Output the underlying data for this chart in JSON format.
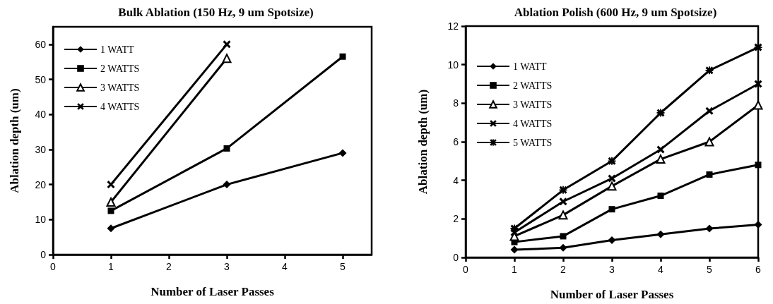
{
  "chart_data": [
    {
      "type": "line",
      "title": "Bulk Ablation (150 Hz, 9 um Spotsize)",
      "xlabel": "Number of Laser Passes",
      "ylabel": "Ablation depth (um)",
      "xlim": [
        0,
        5.5
      ],
      "xticks": [
        0,
        1,
        2,
        3,
        4,
        5
      ],
      "ylim": [
        0,
        65
      ],
      "yticks": [
        0,
        10,
        20,
        30,
        40,
        50,
        60
      ],
      "grid": false,
      "legend": "top left",
      "series": [
        {
          "name": "1 WATT",
          "color": "#000000",
          "marker": "diamond",
          "x": [
            1,
            3,
            5
          ],
          "values": [
            7.5,
            20,
            29
          ]
        },
        {
          "name": "2 WATTS",
          "color": "#000000",
          "marker": "square",
          "x": [
            1,
            3,
            5
          ],
          "values": [
            12.5,
            30.3,
            56.5
          ]
        },
        {
          "name": "3 WATTS",
          "color": "#000000",
          "marker": "triangle",
          "x": [
            1,
            3
          ],
          "values": [
            15,
            56
          ]
        },
        {
          "name": "4 WATTS",
          "color": "#000000",
          "marker": "cross",
          "x": [
            1,
            3
          ],
          "values": [
            20,
            60
          ]
        }
      ]
    },
    {
      "type": "line",
      "title": "Ablation Polish (600 Hz, 9 um Spotsize)",
      "xlabel": "Number of Laser Passes",
      "ylabel": "Ablation depth (um)",
      "xlim": [
        0,
        6
      ],
      "xticks": [
        0,
        1,
        2,
        3,
        4,
        5,
        6
      ],
      "ylim": [
        0,
        12
      ],
      "yticks": [
        0,
        2,
        4,
        6,
        8,
        10,
        12
      ],
      "grid": false,
      "legend": "top left",
      "series": [
        {
          "name": "1 WATT",
          "color": "#000000",
          "marker": "diamond",
          "x": [
            1,
            2,
            3,
            4,
            5,
            6
          ],
          "values": [
            0.4,
            0.5,
            0.9,
            1.2,
            1.5,
            1.7
          ]
        },
        {
          "name": "2 WATTS",
          "color": "#000000",
          "marker": "square",
          "x": [
            1,
            2,
            3,
            4,
            5,
            6
          ],
          "values": [
            0.8,
            1.1,
            2.5,
            3.2,
            4.3,
            4.8
          ]
        },
        {
          "name": "3 WATTS",
          "color": "#000000",
          "marker": "triangle",
          "x": [
            1,
            2,
            3,
            4,
            5,
            6
          ],
          "values": [
            1.1,
            2.2,
            3.7,
            5.1,
            6.0,
            7.9
          ]
        },
        {
          "name": "4 WATTS",
          "color": "#000000",
          "marker": "cross",
          "x": [
            1,
            2,
            3,
            4,
            5,
            6
          ],
          "values": [
            1.3,
            2.9,
            4.1,
            5.6,
            7.6,
            9.0
          ]
        },
        {
          "name": "5 WATTS",
          "color": "#000000",
          "marker": "star",
          "x": [
            1,
            2,
            3,
            4,
            5,
            6
          ],
          "values": [
            1.5,
            3.5,
            5.0,
            7.5,
            9.7,
            10.9
          ]
        }
      ]
    }
  ]
}
